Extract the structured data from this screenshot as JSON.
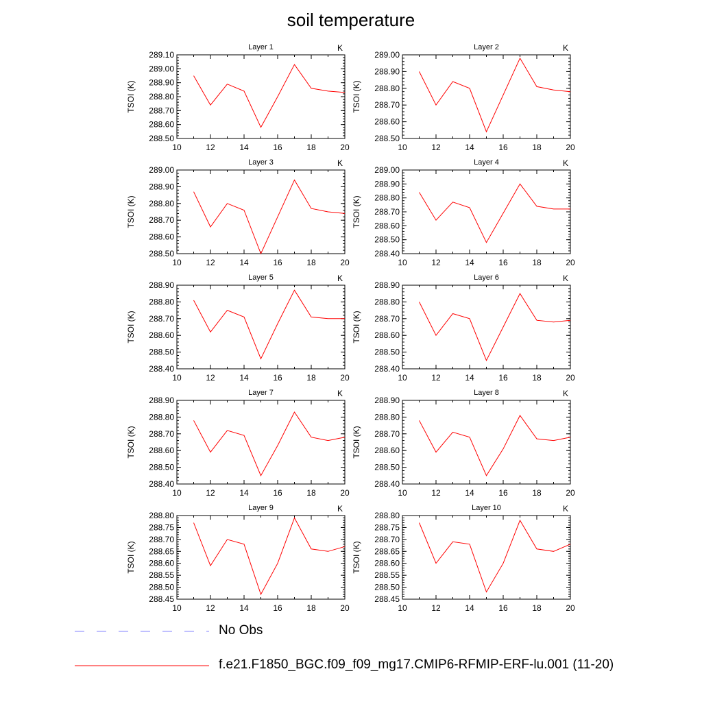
{
  "title": "soil temperature",
  "legend": [
    {
      "label": "No Obs",
      "style": "dashed",
      "color": "#8080ff"
    },
    {
      "label": "f.e21.F1850_BGC.f09_f09_mg17.CMIP6-RFMIP-ERF-lu.001 (11-20)",
      "style": "solid",
      "color": "#ff0000"
    }
  ],
  "chart_data": [
    {
      "type": "line",
      "title": "Layer 1",
      "units": "K",
      "ylabel": "TSOI  (K)",
      "xlim": [
        10,
        20
      ],
      "ylim": [
        288.5,
        289.1
      ],
      "xticks": [
        "10",
        "12",
        "14",
        "16",
        "18",
        "20"
      ],
      "yticks": [
        "288.50",
        "288.60",
        "288.70",
        "288.80",
        "288.90",
        "289.00",
        "289.10"
      ],
      "series": [
        {
          "x": [
            11,
            12,
            13,
            14,
            15,
            16,
            17,
            18,
            19,
            20
          ],
          "values": [
            288.95,
            288.74,
            288.89,
            288.84,
            288.58,
            288.8,
            289.03,
            288.86,
            288.84,
            288.83
          ]
        }
      ]
    },
    {
      "type": "line",
      "title": "Layer 2",
      "units": "K",
      "ylabel": "TSOI  (K)",
      "xlim": [
        10,
        20
      ],
      "ylim": [
        288.5,
        289.0
      ],
      "xticks": [
        "10",
        "12",
        "14",
        "16",
        "18",
        "20"
      ],
      "yticks": [
        "288.50",
        "288.60",
        "288.70",
        "288.80",
        "288.90",
        "289.00"
      ],
      "series": [
        {
          "x": [
            11,
            12,
            13,
            14,
            15,
            16,
            17,
            18,
            19,
            20
          ],
          "values": [
            288.9,
            288.7,
            288.84,
            288.8,
            288.54,
            288.76,
            288.98,
            288.81,
            288.79,
            288.78
          ]
        }
      ]
    },
    {
      "type": "line",
      "title": "Layer 3",
      "units": "K",
      "ylabel": "TSOI  (K)",
      "xlim": [
        10,
        20
      ],
      "ylim": [
        288.5,
        289.0
      ],
      "xticks": [
        "10",
        "12",
        "14",
        "16",
        "18",
        "20"
      ],
      "yticks": [
        "288.50",
        "288.60",
        "288.70",
        "288.80",
        "288.90",
        "289.00"
      ],
      "series": [
        {
          "x": [
            11,
            12,
            13,
            14,
            15,
            16,
            17,
            18,
            19,
            20
          ],
          "values": [
            288.87,
            288.66,
            288.8,
            288.76,
            288.5,
            288.72,
            288.94,
            288.77,
            288.75,
            288.74
          ]
        }
      ]
    },
    {
      "type": "line",
      "title": "Layer 4",
      "units": "K",
      "ylabel": "TSOI  (K)",
      "xlim": [
        10,
        20
      ],
      "ylim": [
        288.4,
        289.0
      ],
      "xticks": [
        "10",
        "12",
        "14",
        "16",
        "18",
        "20"
      ],
      "yticks": [
        "288.40",
        "288.50",
        "288.60",
        "288.70",
        "288.80",
        "288.90",
        "289.00"
      ],
      "series": [
        {
          "x": [
            11,
            12,
            13,
            14,
            15,
            16,
            17,
            18,
            19,
            20
          ],
          "values": [
            288.84,
            288.64,
            288.77,
            288.73,
            288.48,
            288.69,
            288.9,
            288.74,
            288.72,
            288.72
          ]
        }
      ]
    },
    {
      "type": "line",
      "title": "Layer 5",
      "units": "K",
      "ylabel": "TSOI  (K)",
      "xlim": [
        10,
        20
      ],
      "ylim": [
        288.4,
        288.9
      ],
      "xticks": [
        "10",
        "12",
        "14",
        "16",
        "18",
        "20"
      ],
      "yticks": [
        "288.40",
        "288.50",
        "288.60",
        "288.70",
        "288.80",
        "288.90"
      ],
      "series": [
        {
          "x": [
            11,
            12,
            13,
            14,
            15,
            16,
            17,
            18,
            19,
            20
          ],
          "values": [
            288.81,
            288.62,
            288.75,
            288.71,
            288.46,
            288.67,
            288.87,
            288.71,
            288.7,
            288.7
          ]
        }
      ]
    },
    {
      "type": "line",
      "title": "Layer 6",
      "units": "K",
      "ylabel": "TSOI  (K)",
      "xlim": [
        10,
        20
      ],
      "ylim": [
        288.4,
        288.9
      ],
      "xticks": [
        "10",
        "12",
        "14",
        "16",
        "18",
        "20"
      ],
      "yticks": [
        "288.40",
        "288.50",
        "288.60",
        "288.70",
        "288.80",
        "288.90"
      ],
      "series": [
        {
          "x": [
            11,
            12,
            13,
            14,
            15,
            16,
            17,
            18,
            19,
            20
          ],
          "values": [
            288.8,
            288.6,
            288.73,
            288.7,
            288.45,
            288.65,
            288.85,
            288.69,
            288.68,
            288.69
          ]
        }
      ]
    },
    {
      "type": "line",
      "title": "Layer 7",
      "units": "K",
      "ylabel": "TSOI  (K)",
      "xlim": [
        10,
        20
      ],
      "ylim": [
        288.4,
        288.9
      ],
      "xticks": [
        "10",
        "12",
        "14",
        "16",
        "18",
        "20"
      ],
      "yticks": [
        "288.40",
        "288.50",
        "288.60",
        "288.70",
        "288.80",
        "288.90"
      ],
      "series": [
        {
          "x": [
            11,
            12,
            13,
            14,
            15,
            16,
            17,
            18,
            19,
            20
          ],
          "values": [
            288.78,
            288.59,
            288.72,
            288.69,
            288.45,
            288.63,
            288.83,
            288.68,
            288.66,
            288.68
          ]
        }
      ]
    },
    {
      "type": "line",
      "title": "Layer 8",
      "units": "K",
      "ylabel": "TSOI  (K)",
      "xlim": [
        10,
        20
      ],
      "ylim": [
        288.4,
        288.9
      ],
      "xticks": [
        "10",
        "12",
        "14",
        "16",
        "18",
        "20"
      ],
      "yticks": [
        "288.40",
        "288.50",
        "288.60",
        "288.70",
        "288.80",
        "288.90"
      ],
      "series": [
        {
          "x": [
            11,
            12,
            13,
            14,
            15,
            16,
            17,
            18,
            19,
            20
          ],
          "values": [
            288.78,
            288.59,
            288.71,
            288.68,
            288.45,
            288.61,
            288.81,
            288.67,
            288.66,
            288.68
          ]
        }
      ]
    },
    {
      "type": "line",
      "title": "Layer 9",
      "units": "K",
      "ylabel": "TSOI  (K)",
      "xlim": [
        10,
        20
      ],
      "ylim": [
        288.45,
        288.8
      ],
      "xticks": [
        "10",
        "12",
        "14",
        "16",
        "18",
        "20"
      ],
      "yticks": [
        "288.45",
        "288.50",
        "288.55",
        "288.60",
        "288.65",
        "288.70",
        "288.75",
        "288.80"
      ],
      "series": [
        {
          "x": [
            11,
            12,
            13,
            14,
            15,
            16,
            17,
            18,
            19,
            20
          ],
          "values": [
            288.77,
            288.59,
            288.7,
            288.68,
            288.47,
            288.6,
            288.79,
            288.66,
            288.65,
            288.67
          ]
        }
      ]
    },
    {
      "type": "line",
      "title": "Layer 10",
      "units": "K",
      "ylabel": "TSOI  (K)",
      "xlim": [
        10,
        20
      ],
      "ylim": [
        288.45,
        288.8
      ],
      "xticks": [
        "10",
        "12",
        "14",
        "16",
        "18",
        "20"
      ],
      "yticks": [
        "288.45",
        "288.50",
        "288.55",
        "288.60",
        "288.65",
        "288.70",
        "288.75",
        "288.80"
      ],
      "series": [
        {
          "x": [
            11,
            12,
            13,
            14,
            15,
            16,
            17,
            18,
            19,
            20
          ],
          "values": [
            288.77,
            288.6,
            288.69,
            288.68,
            288.48,
            288.6,
            288.78,
            288.66,
            288.65,
            288.68
          ]
        }
      ]
    }
  ]
}
